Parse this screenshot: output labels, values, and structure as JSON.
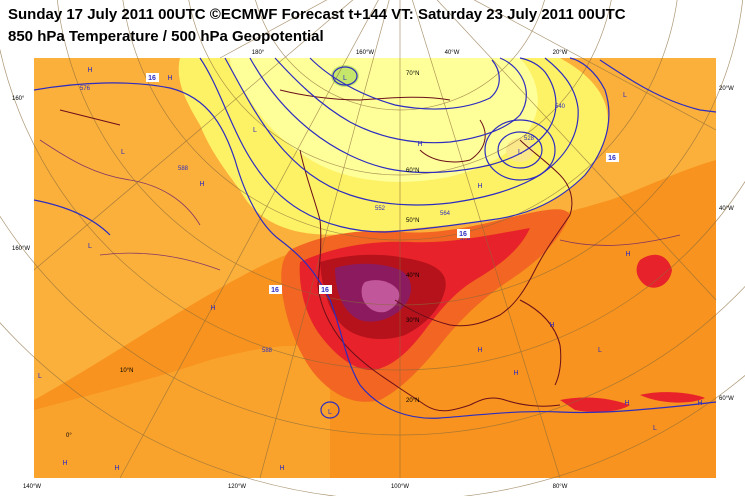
{
  "header": {
    "title_line1": "Sunday 17 July 2011 00UTC ©ECMWF Forecast t+144 VT: Saturday 23 July 2011 00UTC",
    "title_line2": "850 hPa Temperature / 500 hPa Geopotential"
  },
  "colors": {
    "background_warm": "#f7931e",
    "temp_cold_yellow": "#fdf266",
    "temp_pale_yellow": "#ffff99",
    "temp_light_green": "#c6e66b",
    "temp_orange_light": "#fbb03b",
    "temp_orange_red": "#f26522",
    "temp_red": "#e8222a",
    "temp_dark_red": "#b5121b",
    "temp_purple": "#8b1a5e",
    "temp_magenta": "#c2569a",
    "geopotential_line": "#2e2dbf",
    "border_line": "#6b0f1a"
  },
  "map": {
    "lon_labels": {
      "bottom": [
        "140°W",
        "120°W",
        "100°W",
        "80°W"
      ],
      "top": [
        "180°",
        "160°W",
        "40°W",
        "20°W"
      ],
      "left": [
        "160°",
        "160°W"
      ],
      "right": [
        "20°W",
        "40°W",
        "60°W"
      ]
    },
    "lat_labels": [
      "70°N",
      "60°N",
      "50°N",
      "40°N",
      "30°N",
      "20°N",
      "10°N",
      "0°"
    ],
    "contour_labels": [
      "576",
      "588",
      "540",
      "528",
      "552",
      "564",
      "576",
      "588"
    ],
    "isotherm_labels": [
      "16",
      "16",
      "16",
      "16",
      "16"
    ],
    "pressure_centers": [
      {
        "kind": "L"
      },
      {
        "kind": "L"
      },
      {
        "kind": "L"
      },
      {
        "kind": "L"
      },
      {
        "kind": "L"
      },
      {
        "kind": "L"
      },
      {
        "kind": "L"
      },
      {
        "kind": "L"
      },
      {
        "kind": "L"
      },
      {
        "kind": "L"
      },
      {
        "kind": "H"
      },
      {
        "kind": "H"
      },
      {
        "kind": "H"
      },
      {
        "kind": "H"
      },
      {
        "kind": "H"
      },
      {
        "kind": "H"
      },
      {
        "kind": "H"
      },
      {
        "kind": "H"
      },
      {
        "kind": "H"
      },
      {
        "kind": "H"
      },
      {
        "kind": "H"
      },
      {
        "kind": "H"
      },
      {
        "kind": "H"
      },
      {
        "kind": "H"
      },
      {
        "kind": "H"
      }
    ]
  }
}
